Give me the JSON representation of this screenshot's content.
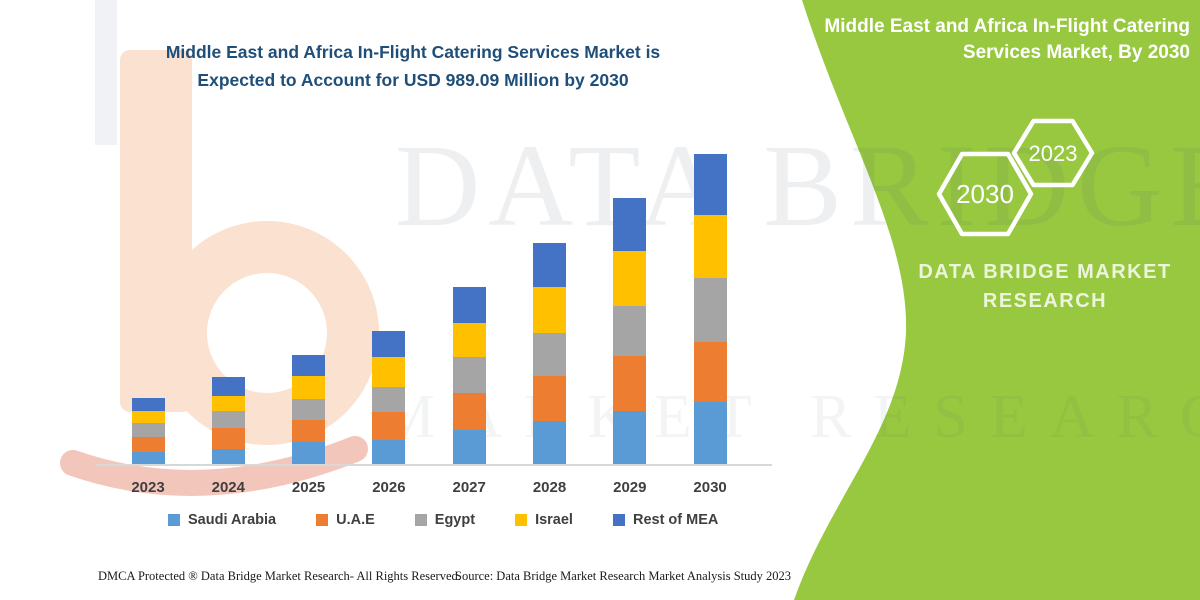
{
  "header": {
    "title_line1": "Middle East and Africa In-Flight Catering Services Market is",
    "title_line2": "Expected to Account for USD 989.09 Million by 2030"
  },
  "side_panel": {
    "panel_color": "#97C83F",
    "title_line1": "Middle East and Africa In-Flight Catering",
    "title_line2": "Services Market, By 2030",
    "hexagon_back_year": "2030",
    "hexagon_front_year": "2023",
    "brand_line1": "DATA BRIDGE MARKET",
    "brand_line2": "RESEARCH"
  },
  "watermark": {
    "line1": "DATA BRIDGE",
    "line2": "MARKET RESEARCH"
  },
  "footer": {
    "dmca": "DMCA Protected ® Data Bridge Market Research-  All Rights Reserved.",
    "source": "Source: Data Bridge Market Research  Market Analysis Study 2023"
  },
  "chart_data": {
    "type": "bar",
    "stacked": true,
    "title": "Middle East and Africa In-Flight Catering Services Market is Expected to Account for USD 989.09 Million by 2030",
    "unit": "USD Million",
    "xlabel": "",
    "ylabel": "",
    "y_axis_visible": false,
    "gridlines": false,
    "legend_position": "bottom",
    "categories": [
      "2023",
      "2024",
      "2025",
      "2026",
      "2027",
      "2028",
      "2029",
      "2030"
    ],
    "series": [
      {
        "name": "Saudi Arabia",
        "color": "#5B9BD5",
        "values": [
          42,
          50,
          72,
          80,
          111,
          141,
          172,
          201
        ]
      },
      {
        "name": "U.A.E",
        "color": "#ED7D31",
        "values": [
          48,
          67,
          71,
          88,
          117,
          142,
          173,
          191
        ]
      },
      {
        "name": "Egypt",
        "color": "#A5A5A5",
        "values": [
          43,
          56,
          67,
          81,
          116,
          136,
          162,
          202
        ]
      },
      {
        "name": "Israel",
        "color": "#FFC000",
        "values": [
          40,
          47,
          74,
          95,
          108,
          146,
          172,
          201
        ]
      },
      {
        "name": "Rest of MEA",
        "color": "#4472C4",
        "values": [
          39,
          60,
          66,
          82,
          115,
          140,
          170,
          194.09
        ]
      }
    ],
    "totals_estimated": [
      212,
      280,
      350,
      426,
      567,
      705,
      849,
      989.09
    ]
  }
}
